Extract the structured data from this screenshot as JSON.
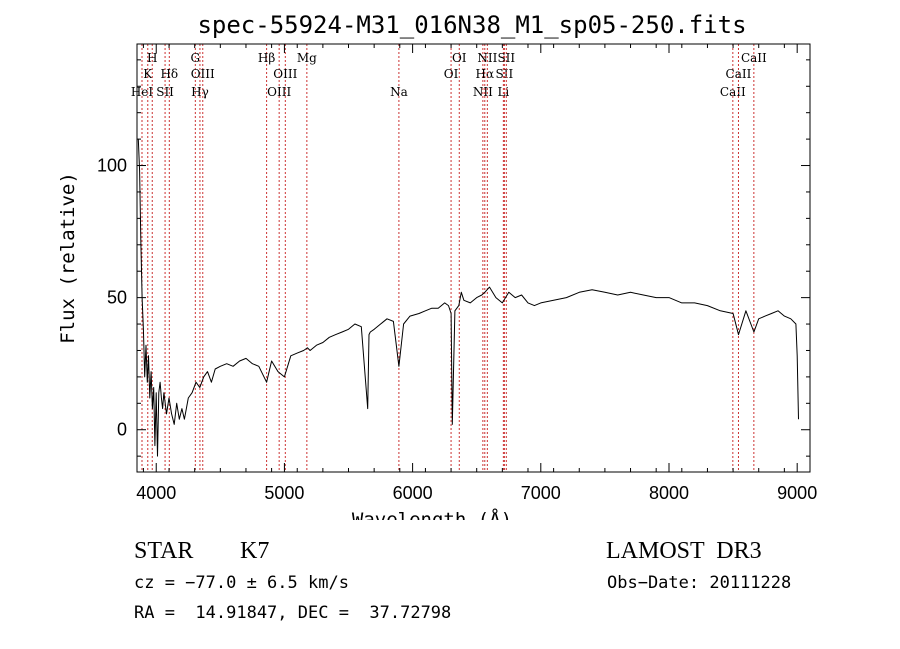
{
  "chart_data": {
    "type": "line",
    "title": "spec-55924-M31_016N38_M1_sp05-250.fits",
    "xlabel": "Wavelength (Å)",
    "ylabel": "Flux (relative)",
    "xlim": [
      3850,
      9100
    ],
    "ylim": [
      -16,
      146
    ],
    "xticks": [
      4000,
      5000,
      6000,
      7000,
      8000,
      9000
    ],
    "yticks": [
      0,
      50,
      100
    ],
    "grid": false,
    "series": [
      {
        "name": "flux",
        "x": [
          3860,
          3870,
          3880,
          3890,
          3900,
          3910,
          3920,
          3930,
          3940,
          3950,
          3960,
          3970,
          3980,
          3990,
          4000,
          4010,
          4020,
          4030,
          4040,
          4050,
          4060,
          4080,
          4100,
          4120,
          4140,
          4160,
          4180,
          4200,
          4220,
          4250,
          4280,
          4310,
          4340,
          4370,
          4400,
          4430,
          4460,
          4500,
          4550,
          4600,
          4650,
          4700,
          4750,
          4800,
          4861,
          4900,
          4950,
          5000,
          5050,
          5100,
          5150,
          5180,
          5200,
          5250,
          5300,
          5350,
          5400,
          5450,
          5500,
          5550,
          5600,
          5650,
          5660,
          5670,
          5700,
          5750,
          5800,
          5850,
          5893,
          5930,
          5980,
          6050,
          6100,
          6150,
          6200,
          6250,
          6280,
          6300,
          6310,
          6330,
          6360,
          6380,
          6400,
          6450,
          6500,
          6540,
          6563,
          6600,
          6650,
          6700,
          6750,
          6800,
          6850,
          6900,
          6950,
          7000,
          7100,
          7200,
          7300,
          7400,
          7500,
          7600,
          7700,
          7800,
          7900,
          8000,
          8100,
          8200,
          8300,
          8400,
          8500,
          8542,
          8600,
          8662,
          8700,
          8750,
          8800,
          8850,
          8900,
          8950,
          8990,
          9000,
          9010
        ],
        "values": [
          110,
          98,
          72,
          50,
          38,
          20,
          32,
          18,
          28,
          12,
          22,
          8,
          16,
          -6,
          14,
          -10,
          14,
          18,
          12,
          8,
          14,
          6,
          12,
          6,
          2,
          10,
          4,
          8,
          4,
          12,
          14,
          18,
          16,
          20,
          22,
          18,
          23,
          24,
          25,
          24,
          26,
          27,
          25,
          24,
          18,
          26,
          22,
          20,
          28,
          29,
          30,
          31,
          30,
          32,
          33,
          35,
          36,
          37,
          38,
          40,
          39,
          8,
          36,
          37,
          38,
          40,
          42,
          41,
          24,
          40,
          43,
          44,
          45,
          46,
          46,
          48,
          47,
          44,
          2,
          45,
          47,
          52,
          49,
          48,
          50,
          51,
          52,
          54,
          50,
          48,
          52,
          50,
          51,
          48,
          47,
          48,
          49,
          50,
          52,
          53,
          52,
          51,
          52,
          51,
          50,
          50,
          48,
          48,
          47,
          45,
          44,
          36,
          45,
          37,
          42,
          43,
          44,
          45,
          43,
          42,
          40,
          28,
          4
        ]
      }
    ],
    "lines": [
      {
        "label": "HeI",
        "wave": 3889,
        "row": 3
      },
      {
        "label": "K",
        "wave": 3934,
        "row": 2
      },
      {
        "label": "H",
        "wave": 3969,
        "row": 1
      },
      {
        "label": "SII",
        "wave": 4069,
        "row": 3
      },
      {
        "label": "Hδ",
        "wave": 4102,
        "row": 2
      },
      {
        "label": "G",
        "wave": 4305,
        "row": 1
      },
      {
        "label": "Hγ",
        "wave": 4341,
        "row": 3
      },
      {
        "label": "OIII",
        "wave": 4363,
        "row": 2
      },
      {
        "label": "Hβ",
        "wave": 4861,
        "row": 1
      },
      {
        "label": "OIII",
        "wave": 4959,
        "row": 3
      },
      {
        "label": "OIII",
        "wave": 5007,
        "row": 2
      },
      {
        "label": "Mg",
        "wave": 5175,
        "row": 1
      },
      {
        "label": "Na",
        "wave": 5893,
        "row": 3
      },
      {
        "label": "OI",
        "wave": 6300,
        "row": 2
      },
      {
        "label": "OI",
        "wave": 6364,
        "row": 1
      },
      {
        "label": "NII",
        "wave": 6548,
        "row": 3
      },
      {
        "label": "Hα",
        "wave": 6563,
        "row": 2
      },
      {
        "label": "NII",
        "wave": 6583,
        "row": 1
      },
      {
        "label": "Li",
        "wave": 6708,
        "row": 3
      },
      {
        "label": "SII",
        "wave": 6716,
        "row": 2
      },
      {
        "label": "SII",
        "wave": 6731,
        "row": 1
      },
      {
        "label": "CaII",
        "wave": 8498,
        "row": 3
      },
      {
        "label": "CaII",
        "wave": 8542,
        "row": 2
      },
      {
        "label": "CaII",
        "wave": 8662,
        "row": 1
      }
    ],
    "line_color": "#cc3333"
  },
  "info": {
    "class": "STAR",
    "subclass": "K7",
    "survey": "LAMOST  DR3",
    "cz": "cz = −77.0 ± 6.5 km/s",
    "obsdate": "Obs−Date: 20111228",
    "radec": "RA =  14.91847, DEC =  37.72798"
  }
}
